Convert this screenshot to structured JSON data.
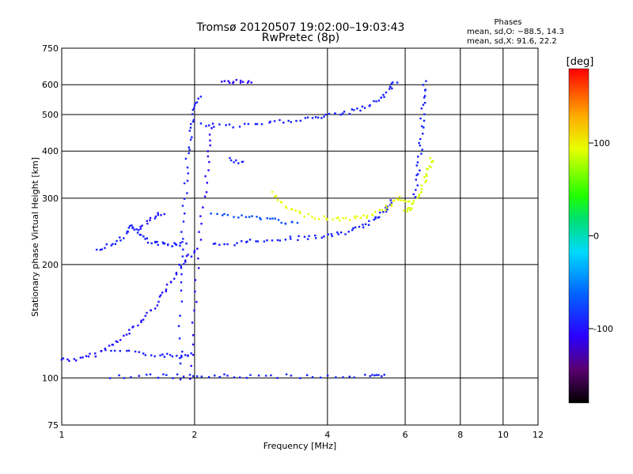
{
  "title": "Tromsø 20120507 19:02:00–19:03:43",
  "subtitle": "RwPretec (8p)",
  "phases_box": {
    "heading": "Phases",
    "line_o": "mean, sd,O: −88.5, 14.3",
    "line_x": "mean, sd,X:  91.6, 22.2"
  },
  "colorbar": {
    "unit": "[deg]",
    "ticks": [
      {
        "label": "100",
        "value": 100
      },
      {
        "label": "0",
        "value": 0
      },
      {
        "label": "-100",
        "value": -100
      }
    ],
    "range": [
      -180,
      180
    ]
  },
  "chart_data": {
    "type": "scatter",
    "title": "Tromsø 20120507 19:02:00–19:03:43",
    "subtitle": "RwPretec (8p)",
    "xlabel": "Frequency [MHz]",
    "ylabel": "Stationary phase Virtual Height [km]",
    "x_scale": "log",
    "y_scale": "log",
    "xlim": [
      1,
      12
    ],
    "ylim": [
      75,
      750
    ],
    "grid": true,
    "x_ticks": [
      {
        "label": "1",
        "value": 1
      },
      {
        "label": "2",
        "value": 2
      },
      {
        "label": "4",
        "value": 4
      },
      {
        "label": "6",
        "value": 6
      },
      {
        "label": "8",
        "value": 8
      },
      {
        "label": "10",
        "value": 10
      },
      {
        "label": "12",
        "value": 12
      }
    ],
    "y_ticks": [
      {
        "label": "75",
        "value": 75
      },
      {
        "label": "100",
        "value": 100
      },
      {
        "label": "200",
        "value": 200
      },
      {
        "label": "300",
        "value": 300
      },
      {
        "label": "400",
        "value": 400
      },
      {
        "label": "500",
        "value": 500
      },
      {
        "label": "600",
        "value": 600
      },
      {
        "label": "750",
        "value": 750
      }
    ],
    "color_range": [
      -180,
      180
    ],
    "traces": [
      {
        "points": [
          [
            1.0,
            112
          ],
          [
            1.1,
            112
          ],
          [
            1.2,
            116
          ],
          [
            1.3,
            122
          ],
          [
            1.4,
            130
          ],
          [
            1.5,
            140
          ],
          [
            1.6,
            152
          ],
          [
            1.7,
            168
          ],
          [
            1.8,
            185
          ],
          [
            1.9,
            205
          ],
          [
            2.0,
            215
          ]
        ],
        "phase": -105
      },
      {
        "points": [
          [
            1.3,
            118
          ],
          [
            1.5,
            116
          ],
          [
            1.7,
            115
          ],
          [
            1.85,
            114
          ],
          [
            1.95,
            116
          ]
        ],
        "phase": -100
      },
      {
        "points": [
          [
            1.2,
            220
          ],
          [
            1.3,
            226
          ],
          [
            1.4,
            240
          ],
          [
            1.45,
            255
          ],
          [
            1.5,
            240
          ],
          [
            1.6,
            228
          ],
          [
            1.7,
            226
          ],
          [
            1.8,
            226
          ],
          [
            1.9,
            228
          ]
        ],
        "phase": -100
      },
      {
        "points": [
          [
            1.5,
            250
          ],
          [
            1.6,
            265
          ],
          [
            1.7,
            275
          ]
        ],
        "phase": -105
      },
      {
        "points": [
          [
            1.86,
            100
          ],
          [
            1.86,
            160
          ],
          [
            1.88,
            220
          ],
          [
            1.9,
            300
          ],
          [
            1.93,
            380
          ],
          [
            1.97,
            450
          ],
          [
            2.0,
            510
          ],
          [
            2.05,
            560
          ]
        ],
        "phase": -100
      },
      {
        "points": [
          [
            1.96,
            100
          ],
          [
            2.0,
            150
          ],
          [
            2.05,
            220
          ],
          [
            2.1,
            300
          ],
          [
            2.15,
            390
          ],
          [
            2.2,
            470
          ]
        ],
        "phase": -110
      },
      {
        "points": [
          [
            1.3,
            101
          ],
          [
            1.6,
            101
          ],
          [
            1.9,
            101
          ],
          [
            2.2,
            101
          ],
          [
            2.6,
            101
          ],
          [
            3.2,
            101
          ],
          [
            4.0,
            101
          ],
          [
            5.0,
            101
          ],
          [
            5.4,
            101
          ]
        ],
        "phase": -100
      },
      {
        "points": [
          [
            2.2,
            225
          ],
          [
            2.5,
            228
          ],
          [
            2.8,
            232
          ],
          [
            3.2,
            234
          ],
          [
            3.6,
            236
          ],
          [
            4.0,
            238
          ],
          [
            4.4,
            243
          ],
          [
            4.8,
            252
          ],
          [
            5.1,
            262
          ],
          [
            5.4,
            278
          ],
          [
            5.6,
            298
          ]
        ],
        "phase": -100
      },
      {
        "points": [
          [
            2.2,
            272
          ],
          [
            2.5,
            268
          ],
          [
            2.8,
            266
          ],
          [
            3.1,
            262
          ],
          [
            3.4,
            255
          ]
        ],
        "phase": -85
      },
      {
        "points": [
          [
            3.0,
            310
          ],
          [
            3.2,
            285
          ],
          [
            3.5,
            272
          ],
          [
            3.9,
            266
          ],
          [
            4.3,
            264
          ],
          [
            4.7,
            266
          ],
          [
            5.1,
            272
          ],
          [
            5.5,
            286
          ],
          [
            5.8,
            300
          ],
          [
            6.1,
            296
          ]
        ],
        "phase": 95
      },
      {
        "points": [
          [
            6.0,
            278
          ],
          [
            6.2,
            282
          ],
          [
            6.4,
            300
          ],
          [
            6.6,
            330
          ],
          [
            6.8,
            360
          ],
          [
            6.9,
            385
          ]
        ],
        "phase": 90
      },
      {
        "points": [
          [
            6.3,
            300
          ],
          [
            6.4,
            350
          ],
          [
            6.5,
            400
          ],
          [
            6.55,
            470
          ],
          [
            6.6,
            540
          ],
          [
            6.65,
            610
          ]
        ],
        "phase": -100
      },
      {
        "points": [
          [
            2.05,
            470
          ],
          [
            2.4,
            465
          ],
          [
            2.8,
            470
          ],
          [
            3.2,
            480
          ],
          [
            3.6,
            488
          ],
          [
            4.0,
            495
          ],
          [
            4.4,
            505
          ],
          [
            4.8,
            520
          ],
          [
            5.2,
            545
          ],
          [
            5.5,
            580
          ],
          [
            5.7,
            610
          ]
        ],
        "phase": -100
      },
      {
        "points": [
          [
            2.3,
            615
          ],
          [
            2.5,
            612
          ],
          [
            2.7,
            612
          ]
        ],
        "phase": -110
      },
      {
        "points": [
          [
            2.4,
            380
          ],
          [
            2.6,
            372
          ]
        ],
        "phase": -100
      }
    ]
  }
}
